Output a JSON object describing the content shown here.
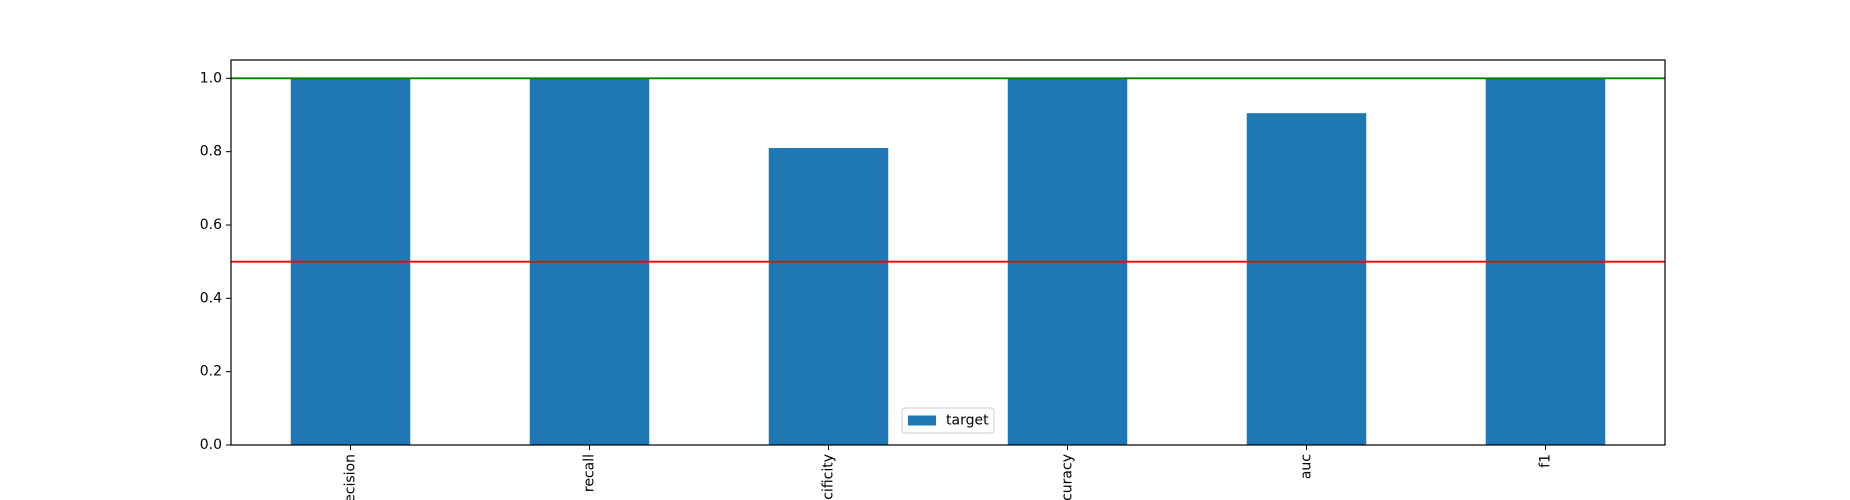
{
  "chart_data": {
    "type": "bar",
    "categories": [
      "precision",
      "recall",
      "specificity",
      "accuracy",
      "auc",
      "f1"
    ],
    "series": [
      {
        "name": "target",
        "color": "#1f77b4",
        "values": [
          1.0,
          1.0,
          0.81,
          1.0,
          0.905,
          1.0
        ]
      }
    ],
    "ylim": [
      0,
      1.05
    ],
    "yticks": [
      {
        "value": 0,
        "label": "0.0"
      },
      {
        "value": 0.2,
        "label": "0.2"
      },
      {
        "value": 0.4,
        "label": "0.4"
      },
      {
        "value": 0.6,
        "label": "0.6"
      },
      {
        "value": 0.8,
        "label": "0.8"
      },
      {
        "value": 1,
        "label": "1.0"
      }
    ],
    "hlines": [
      {
        "value": 1,
        "color": "green"
      },
      {
        "value": 0.5,
        "color": "red"
      }
    ],
    "legend": "lower center"
  }
}
